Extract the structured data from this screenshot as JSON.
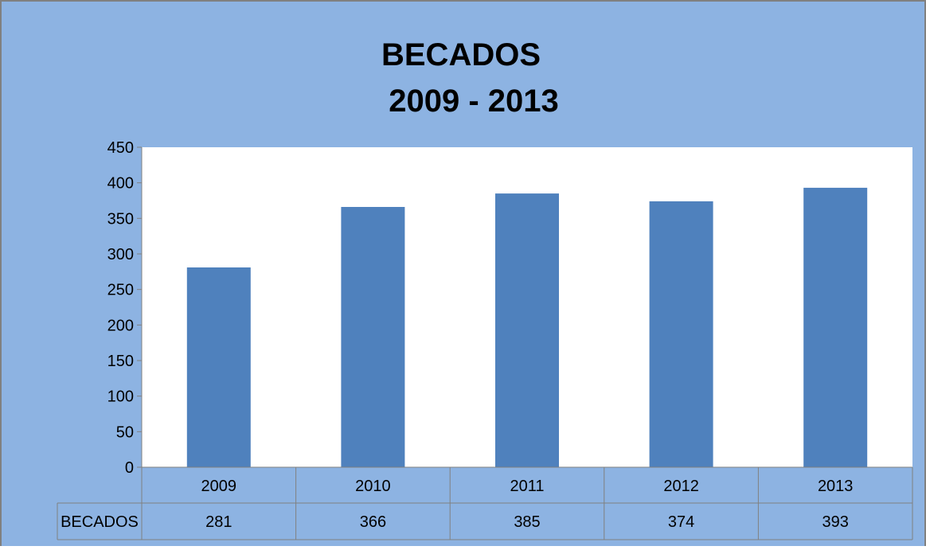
{
  "chart_data": {
    "type": "bar",
    "title": "BECADOS",
    "subtitle": "2009 - 2013",
    "categories": [
      "2009",
      "2010",
      "2011",
      "2012",
      "2013"
    ],
    "series": [
      {
        "name": "BECADOS",
        "values": [
          281,
          366,
          385,
          374,
          393
        ]
      }
    ],
    "ylim": [
      0,
      450
    ],
    "yticks": [
      0,
      50,
      100,
      150,
      200,
      250,
      300,
      350,
      400,
      450
    ],
    "data_table": {
      "row_label": "BECADOS",
      "values": [
        "281",
        "366",
        "385",
        "374",
        "393"
      ]
    },
    "grid": false,
    "legend": "none",
    "colors": {
      "background": "#8DB3E2",
      "plot_area": "#FFFFFF",
      "bar": "#4F81BD",
      "frame": "#808080",
      "text": "#000000"
    }
  }
}
